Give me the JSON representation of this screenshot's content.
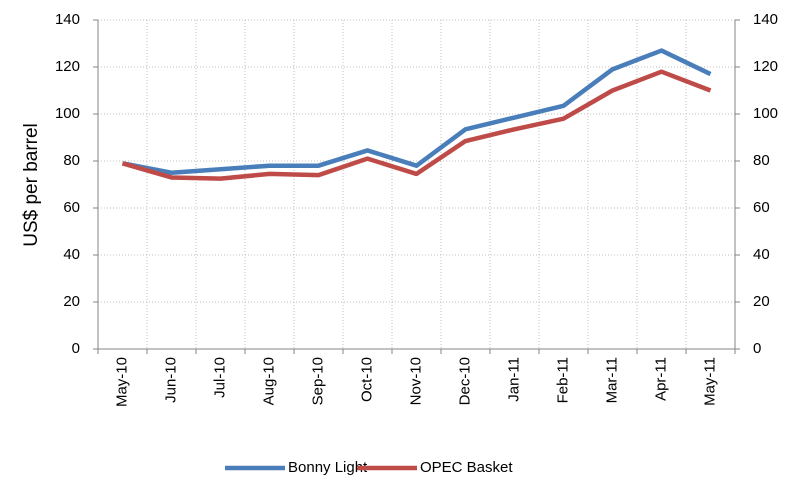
{
  "chart_data": {
    "type": "line",
    "y_label": "US$ per barrel",
    "categories": [
      "May-10",
      "Jun-10",
      "Jul-10",
      "Aug-10",
      "Sep-10",
      "Oct-10",
      "Nov-10",
      "Dec-10",
      "Jan-11",
      "Feb-11",
      "Mar-11",
      "Apr-11",
      "May-11"
    ],
    "series": [
      {
        "name": "Bonny Light",
        "color": "#4a7ebb",
        "values": [
          79,
          75,
          76.5,
          78,
          78,
          84.5,
          78,
          93.5,
          98.5,
          103.5,
          119,
          127,
          117
        ]
      },
      {
        "name": "OPEC Basket",
        "color": "#be4b48",
        "values": [
          79,
          73,
          72.5,
          74.5,
          74,
          81,
          74.5,
          88.5,
          93.5,
          98,
          110,
          118,
          110
        ]
      }
    ],
    "ylim": [
      0,
      140
    ],
    "yticks": [
      0,
      20,
      40,
      60,
      80,
      100,
      120,
      140
    ],
    "y2lim": [
      0,
      140
    ],
    "y2ticks": [
      0,
      20,
      40,
      60,
      80,
      100,
      120,
      140
    ],
    "grid": true,
    "legend": "bottom"
  }
}
